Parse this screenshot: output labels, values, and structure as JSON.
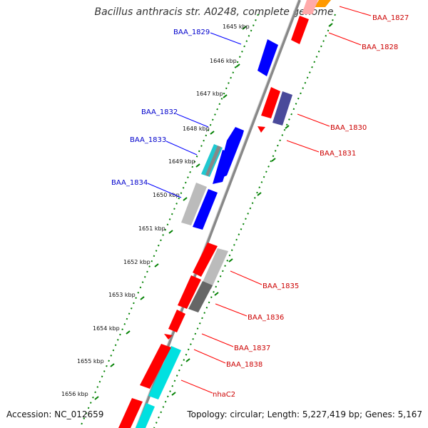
{
  "title": "Bacillus anthracis str. A0248, complete genome",
  "footer": {
    "accession": "Accession: NC_012659",
    "topology": "Topology: circular; Length: 5,227,419 bp; Genes: 5,167"
  },
  "colors": {
    "forward": "#ff0000",
    "reverse": "#0000ff",
    "cyan": "#00e0e0",
    "gray": "#bbbbbb",
    "darkgray": "#666666",
    "slate": "#4a4a9a",
    "orange": "#ff9900",
    "pink": "#ffaaaa",
    "gcTrack": "#008000",
    "backbone": "#888888"
  },
  "ticks": [
    "1645 kbp",
    "1646 kbp",
    "1647 kbp",
    "1648 kbp",
    "1649 kbp",
    "1650 kbp",
    "1651 kbp",
    "1652 kbp",
    "1653 kbp",
    "1654 kbp",
    "1655 kbp",
    "1656 kbp"
  ],
  "reverse_labels": [
    "BAA_1829",
    "BAA_1832",
    "BAA_1833",
    "BAA_1834"
  ],
  "forward_labels": [
    "BAA_1827",
    "BAA_1828",
    "BAA_1830",
    "BAA_1831",
    "BAA_1835",
    "BAA_1836",
    "BAA_1837",
    "BAA_1838",
    "nhaC2"
  ]
}
